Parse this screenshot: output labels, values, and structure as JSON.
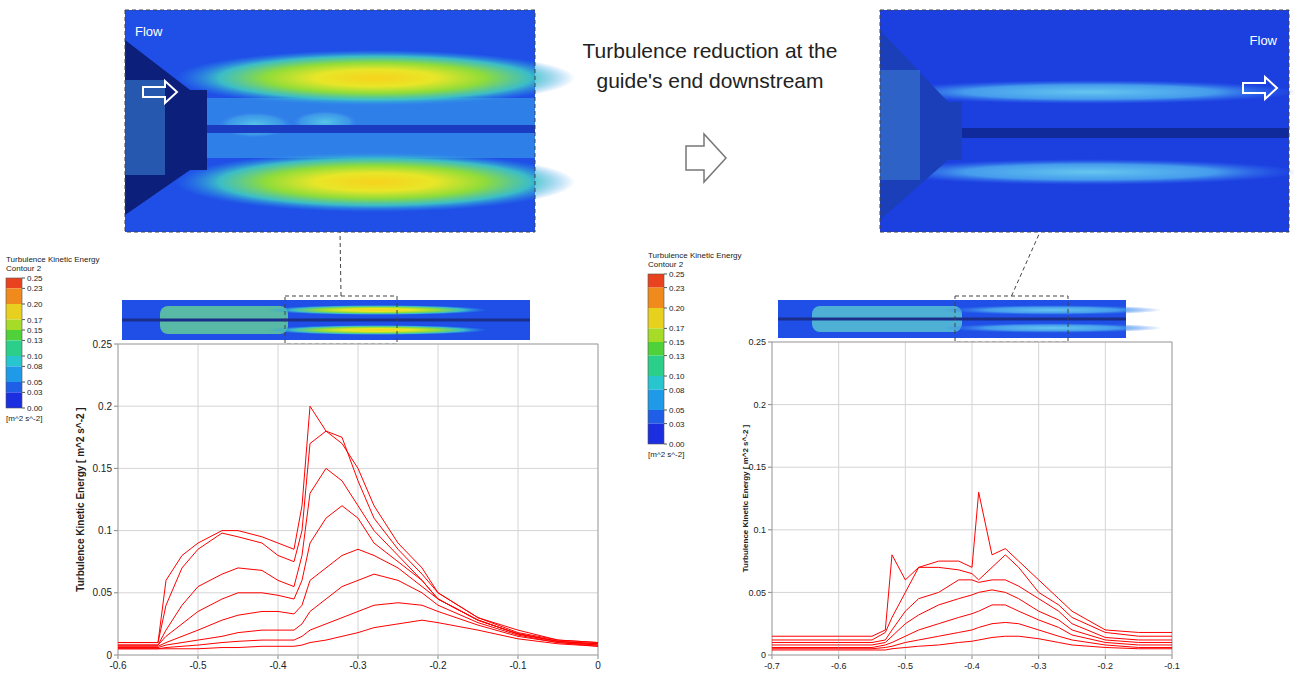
{
  "annotation": "Turbulence reduction at the guide's end downstream",
  "panels": [
    {
      "label": "Flow"
    },
    {
      "label": "Flow"
    }
  ],
  "chart_data": [
    {
      "type": "line",
      "ylabel": "Turbulence Kinetic Energy [ m^2 s^-2 ]",
      "color": "#ff0000",
      "grid": true,
      "xlim": [
        -0.6,
        0
      ],
      "xticks": [
        -0.6,
        -0.5,
        -0.4,
        -0.3,
        -0.2,
        -0.1,
        0
      ],
      "ylim": [
        0,
        0.25
      ],
      "yticks": [
        0,
        0.05,
        0.1,
        0.15,
        0.2,
        0.25
      ],
      "x": [
        -0.6,
        -0.55,
        -0.54,
        -0.52,
        -0.5,
        -0.47,
        -0.45,
        -0.42,
        -0.4,
        -0.38,
        -0.37,
        -0.36,
        -0.34,
        -0.32,
        -0.3,
        -0.28,
        -0.25,
        -0.22,
        -0.2,
        -0.15,
        -0.1,
        -0.05,
        0
      ],
      "series": [
        {
          "values": [
            0.01,
            0.01,
            0.06,
            0.08,
            0.09,
            0.1,
            0.1,
            0.095,
            0.09,
            0.085,
            0.12,
            0.2,
            0.18,
            0.17,
            0.15,
            0.12,
            0.09,
            0.07,
            0.05,
            0.03,
            0.02,
            0.012,
            0.01
          ]
        },
        {
          "values": [
            0.01,
            0.01,
            0.04,
            0.07,
            0.085,
            0.098,
            0.095,
            0.09,
            0.08,
            0.075,
            0.1,
            0.17,
            0.18,
            0.175,
            0.14,
            0.11,
            0.085,
            0.065,
            0.05,
            0.03,
            0.018,
            0.012,
            0.01
          ]
        },
        {
          "values": [
            0.008,
            0.008,
            0.02,
            0.04,
            0.055,
            0.065,
            0.07,
            0.068,
            0.06,
            0.055,
            0.08,
            0.13,
            0.15,
            0.14,
            0.12,
            0.1,
            0.08,
            0.06,
            0.045,
            0.028,
            0.017,
            0.011,
            0.009
          ]
        },
        {
          "values": [
            0.008,
            0.008,
            0.015,
            0.025,
            0.035,
            0.045,
            0.05,
            0.05,
            0.048,
            0.045,
            0.06,
            0.09,
            0.11,
            0.12,
            0.11,
            0.09,
            0.075,
            0.06,
            0.045,
            0.028,
            0.017,
            0.011,
            0.009
          ]
        },
        {
          "values": [
            0.007,
            0.007,
            0.01,
            0.015,
            0.02,
            0.028,
            0.032,
            0.035,
            0.035,
            0.033,
            0.04,
            0.06,
            0.07,
            0.08,
            0.085,
            0.08,
            0.07,
            0.055,
            0.045,
            0.028,
            0.017,
            0.011,
            0.008
          ]
        },
        {
          "values": [
            0.006,
            0.006,
            0.008,
            0.01,
            0.012,
            0.015,
            0.018,
            0.02,
            0.02,
            0.02,
            0.025,
            0.035,
            0.045,
            0.055,
            0.06,
            0.065,
            0.06,
            0.05,
            0.04,
            0.026,
            0.016,
            0.01,
            0.008
          ]
        },
        {
          "values": [
            0.005,
            0.005,
            0.006,
            0.007,
            0.008,
            0.01,
            0.011,
            0.012,
            0.012,
            0.012,
            0.015,
            0.02,
            0.025,
            0.03,
            0.035,
            0.04,
            0.042,
            0.04,
            0.035,
            0.024,
            0.015,
            0.01,
            0.007
          ]
        },
        {
          "values": [
            0.005,
            0.005,
            0.005,
            0.005,
            0.005,
            0.006,
            0.006,
            0.007,
            0.007,
            0.007,
            0.008,
            0.01,
            0.012,
            0.015,
            0.018,
            0.022,
            0.025,
            0.028,
            0.026,
            0.02,
            0.013,
            0.009,
            0.007
          ]
        }
      ],
      "colorbar": {
        "title": "Turbulence Kinetic Energy",
        "subtitle": "Contour 2",
        "unit": "[m^2 s^-2]",
        "range": [
          0,
          0.25
        ],
        "ticks": [
          0.25,
          0.23,
          {
            "value": 0.2,
            "label": "0.20"
          },
          0.17,
          0.15,
          0.13,
          {
            "value": 0.1,
            "label": "0.10"
          },
          0.08,
          0.05,
          0.03,
          {
            "value": 0,
            "label": "0.00"
          }
        ]
      }
    },
    {
      "type": "line",
      "ylabel": "Turbulence Kinetic Energy [ m^2 s^-2 ]",
      "color": "#ff0000",
      "grid": true,
      "xlim": [
        -0.7,
        -0.1
      ],
      "xticks": [
        -0.7,
        -0.6,
        -0.5,
        -0.4,
        -0.3,
        -0.2,
        -0.1
      ],
      "ylim": [
        0,
        0.25
      ],
      "yticks": [
        0,
        0.05,
        0.1,
        0.15,
        0.2,
        0.25
      ],
      "x": [
        -0.7,
        -0.6,
        -0.55,
        -0.53,
        -0.52,
        -0.5,
        -0.48,
        -0.45,
        -0.42,
        -0.4,
        -0.39,
        -0.37,
        -0.35,
        -0.33,
        -0.3,
        -0.27,
        -0.25,
        -0.2,
        -0.15,
        -0.1
      ],
      "series": [
        {
          "values": [
            0.015,
            0.015,
            0.015,
            0.02,
            0.08,
            0.06,
            0.07,
            0.075,
            0.075,
            0.07,
            0.13,
            0.08,
            0.085,
            0.075,
            0.06,
            0.045,
            0.035,
            0.02,
            0.018,
            0.018
          ]
        },
        {
          "values": [
            0.012,
            0.012,
            0.012,
            0.018,
            0.03,
            0.05,
            0.07,
            0.07,
            0.068,
            0.065,
            0.06,
            0.07,
            0.08,
            0.07,
            0.05,
            0.04,
            0.03,
            0.018,
            0.015,
            0.015
          ]
        },
        {
          "values": [
            0.01,
            0.01,
            0.01,
            0.012,
            0.02,
            0.035,
            0.045,
            0.05,
            0.06,
            0.06,
            0.058,
            0.06,
            0.06,
            0.055,
            0.045,
            0.035,
            0.025,
            0.014,
            0.012,
            0.012
          ]
        },
        {
          "values": [
            0.008,
            0.008,
            0.008,
            0.01,
            0.015,
            0.025,
            0.032,
            0.04,
            0.045,
            0.048,
            0.05,
            0.052,
            0.05,
            0.045,
            0.035,
            0.028,
            0.02,
            0.012,
            0.01,
            0.01
          ]
        },
        {
          "values": [
            0.006,
            0.006,
            0.006,
            0.008,
            0.01,
            0.015,
            0.02,
            0.025,
            0.03,
            0.033,
            0.035,
            0.04,
            0.04,
            0.035,
            0.028,
            0.022,
            0.016,
            0.01,
            0.008,
            0.008
          ]
        },
        {
          "values": [
            0.005,
            0.005,
            0.005,
            0.006,
            0.007,
            0.01,
            0.012,
            0.015,
            0.018,
            0.02,
            0.022,
            0.025,
            0.026,
            0.025,
            0.02,
            0.015,
            0.012,
            0.008,
            0.006,
            0.006
          ]
        },
        {
          "values": [
            0.004,
            0.004,
            0.004,
            0.004,
            0.005,
            0.006,
            0.007,
            0.008,
            0.01,
            0.011,
            0.012,
            0.014,
            0.015,
            0.015,
            0.013,
            0.01,
            0.008,
            0.006,
            0.005,
            0.005
          ]
        }
      ],
      "colorbar": {
        "title": "Turbulence Kinetic Energy",
        "subtitle": "Contour 2",
        "unit": "[m^2 s^-2]",
        "range": [
          0,
          0.25
        ],
        "ticks": [
          0.25,
          0.23,
          {
            "value": 0.2,
            "label": "0.20"
          },
          0.17,
          0.15,
          0.13,
          {
            "value": 0.1,
            "label": "0.10"
          },
          0.08,
          0.05,
          0.03,
          {
            "value": 0,
            "label": "0.00"
          }
        ]
      }
    }
  ]
}
